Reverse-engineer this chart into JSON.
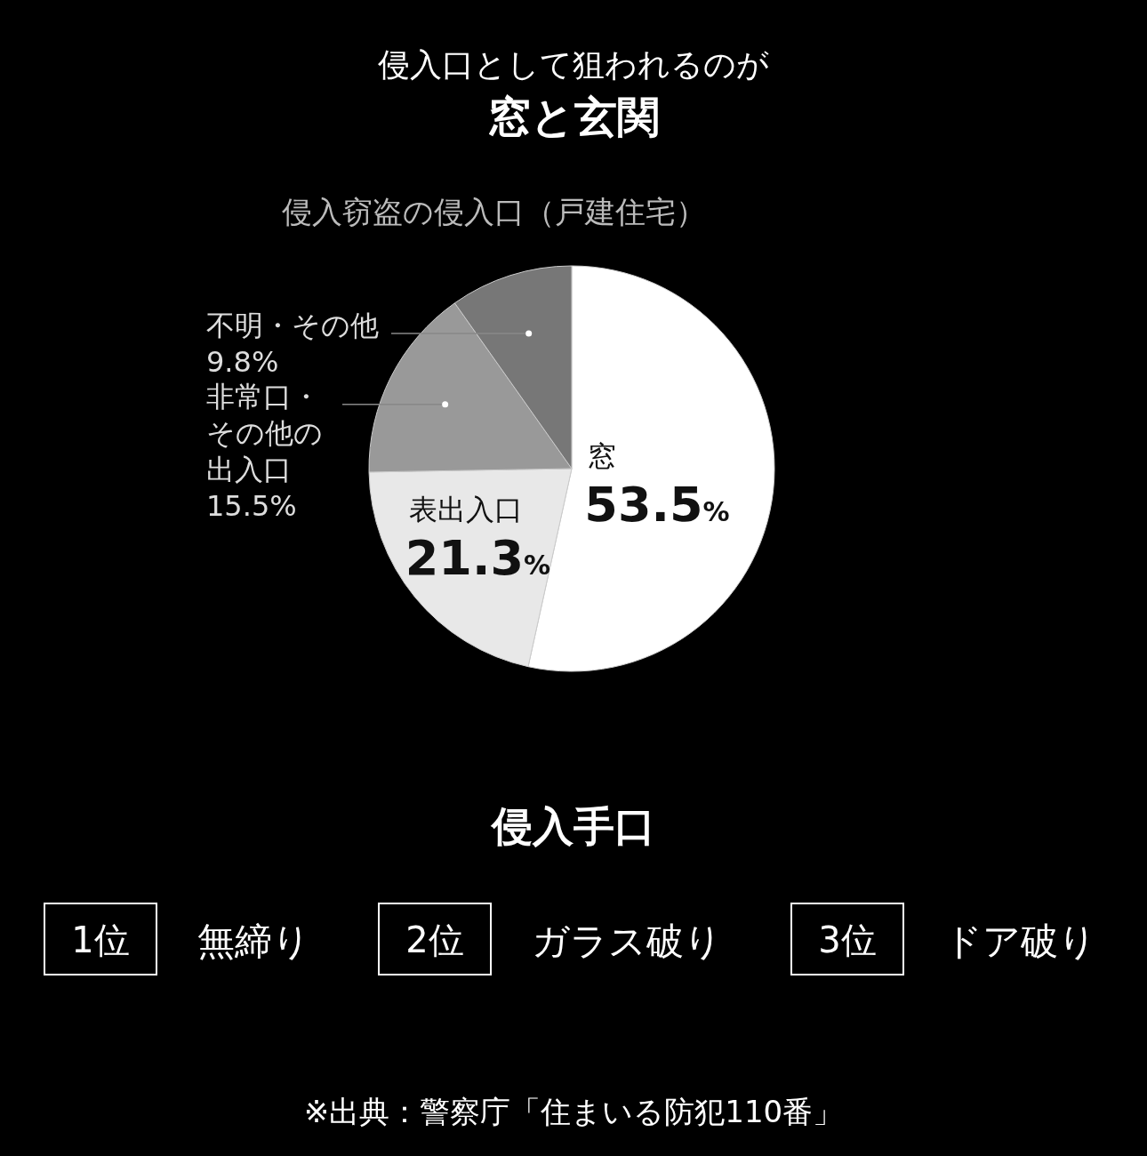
{
  "chart_data": [
    {
      "type": "other",
      "title": "侵入口として狙われるのが",
      "subtitle": "窓と玄関"
    },
    {
      "type": "pie",
      "title": "侵入窃盗の侵入口（戸建住宅）",
      "categories": [
        "窓",
        "表出入口",
        "非常口・その他の出入口",
        "不明・その他"
      ],
      "values": [
        53.5,
        21.3,
        15.5,
        9.8
      ],
      "colors": [
        "#ffffff",
        "#e8e8e8",
        "#999999",
        "#777777"
      ],
      "value_labels": [
        "53.5%",
        "21.3%",
        "15.5%",
        "9.8%"
      ]
    },
    {
      "type": "other",
      "title": "侵入手口",
      "categories": [
        "1位",
        "2位",
        "3位"
      ],
      "annotations": [
        "無締り",
        "ガラス破り",
        "ドア破り"
      ]
    },
    {
      "type": "other",
      "annotations": [
        "※出典：警察庁「住まいる防犯110番」"
      ]
    }
  ]
}
